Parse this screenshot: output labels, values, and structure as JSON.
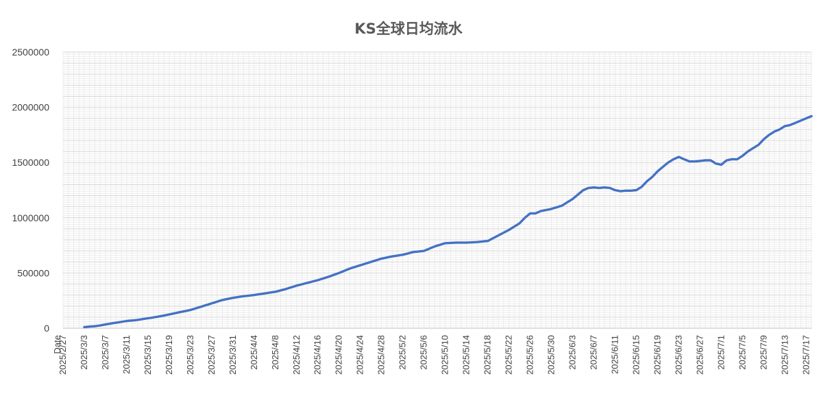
{
  "chart_data": {
    "type": "line",
    "title": "KS全球日均流水",
    "x_start": "2025/2/27",
    "x_end": "2025/7/18",
    "x_first_label": "Date",
    "x_tick_labels": [
      "2025/2/27",
      "2025/3/3",
      "2025/3/7",
      "2025/3/11",
      "2025/3/15",
      "2025/3/19",
      "2025/3/23",
      "2025/3/27",
      "2025/3/31",
      "2025/4/4",
      "2025/4/8",
      "2025/4/12",
      "2025/4/16",
      "2025/4/20",
      "2025/4/24",
      "2025/4/28",
      "2025/5/2",
      "2025/5/6",
      "2025/5/10",
      "2025/5/14",
      "2025/5/18",
      "2025/5/22",
      "2025/5/26",
      "2025/5/30",
      "2025/6/3",
      "2025/6/7",
      "2025/6/11",
      "2025/6/15",
      "2025/6/19",
      "2025/6/23",
      "2025/6/27",
      "2025/7/1",
      "2025/7/5",
      "2025/7/9",
      "2025/7/13",
      "2025/7/17"
    ],
    "y_tick_labels": [
      "0",
      "500000",
      "1000000",
      "1500000",
      "2000000",
      "2500000"
    ],
    "ylim": [
      0,
      2500000
    ],
    "grid": true,
    "legend": "none",
    "series_color": "#4472c4",
    "series": [
      {
        "x": [
          "2025/3/3",
          "2025/3/4",
          "2025/3/5",
          "2025/3/6",
          "2025/3/7",
          "2025/3/9",
          "2025/3/11",
          "2025/3/13",
          "2025/3/15",
          "2025/3/17",
          "2025/3/19",
          "2025/3/21",
          "2025/3/23",
          "2025/3/25",
          "2025/3/27",
          "2025/3/29",
          "2025/3/31",
          "2025/4/2",
          "2025/4/4",
          "2025/4/6",
          "2025/4/8",
          "2025/4/10",
          "2025/4/12",
          "2025/4/14",
          "2025/4/16",
          "2025/4/18",
          "2025/4/20",
          "2025/4/22",
          "2025/4/24",
          "2025/4/26",
          "2025/4/28",
          "2025/4/30",
          "2025/5/2",
          "2025/5/4",
          "2025/5/6",
          "2025/5/8",
          "2025/5/10",
          "2025/5/12",
          "2025/5/14",
          "2025/5/16",
          "2025/5/18",
          "2025/5/20",
          "2025/5/22",
          "2025/5/24",
          "2025/5/25",
          "2025/5/26",
          "2025/5/27",
          "2025/5/28",
          "2025/5/30",
          "2025/6/1",
          "2025/6/2",
          "2025/6/3",
          "2025/6/4",
          "2025/6/5",
          "2025/6/6",
          "2025/6/7",
          "2025/6/8",
          "2025/6/9",
          "2025/6/10",
          "2025/6/11",
          "2025/6/12",
          "2025/6/13",
          "2025/6/14",
          "2025/6/15",
          "2025/6/16",
          "2025/6/17",
          "2025/6/18",
          "2025/6/19",
          "2025/6/20",
          "2025/6/21",
          "2025/6/22",
          "2025/6/23",
          "2025/6/24",
          "2025/6/25",
          "2025/6/26",
          "2025/6/27",
          "2025/6/28",
          "2025/6/29",
          "2025/6/30",
          "2025/7/1",
          "2025/7/2",
          "2025/7/3",
          "2025/7/4",
          "2025/7/5",
          "2025/7/6",
          "2025/7/7",
          "2025/7/8",
          "2025/7/9",
          "2025/7/10",
          "2025/7/11",
          "2025/7/12",
          "2025/7/13",
          "2025/7/14",
          "2025/7/15",
          "2025/7/16",
          "2025/7/17",
          "2025/7/18"
        ],
        "y": [
          10000,
          15000,
          18000,
          25000,
          35000,
          50000,
          65000,
          75000,
          90000,
          105000,
          125000,
          145000,
          165000,
          195000,
          225000,
          255000,
          275000,
          290000,
          300000,
          315000,
          330000,
          355000,
          385000,
          410000,
          435000,
          465000,
          500000,
          540000,
          570000,
          600000,
          630000,
          650000,
          665000,
          690000,
          700000,
          740000,
          770000,
          775000,
          775000,
          780000,
          790000,
          840000,
          890000,
          950000,
          1000000,
          1040000,
          1040000,
          1060000,
          1080000,
          1110000,
          1140000,
          1170000,
          1210000,
          1250000,
          1270000,
          1275000,
          1270000,
          1275000,
          1270000,
          1250000,
          1240000,
          1245000,
          1245000,
          1250000,
          1280000,
          1330000,
          1370000,
          1420000,
          1460000,
          1500000,
          1530000,
          1550000,
          1530000,
          1510000,
          1510000,
          1515000,
          1520000,
          1520000,
          1490000,
          1480000,
          1520000,
          1530000,
          1530000,
          1560000,
          1600000,
          1630000,
          1660000,
          1710000,
          1750000,
          1780000,
          1800000,
          1830000,
          1840000,
          1860000,
          1880000,
          1900000,
          1920000
        ]
      }
    ]
  }
}
